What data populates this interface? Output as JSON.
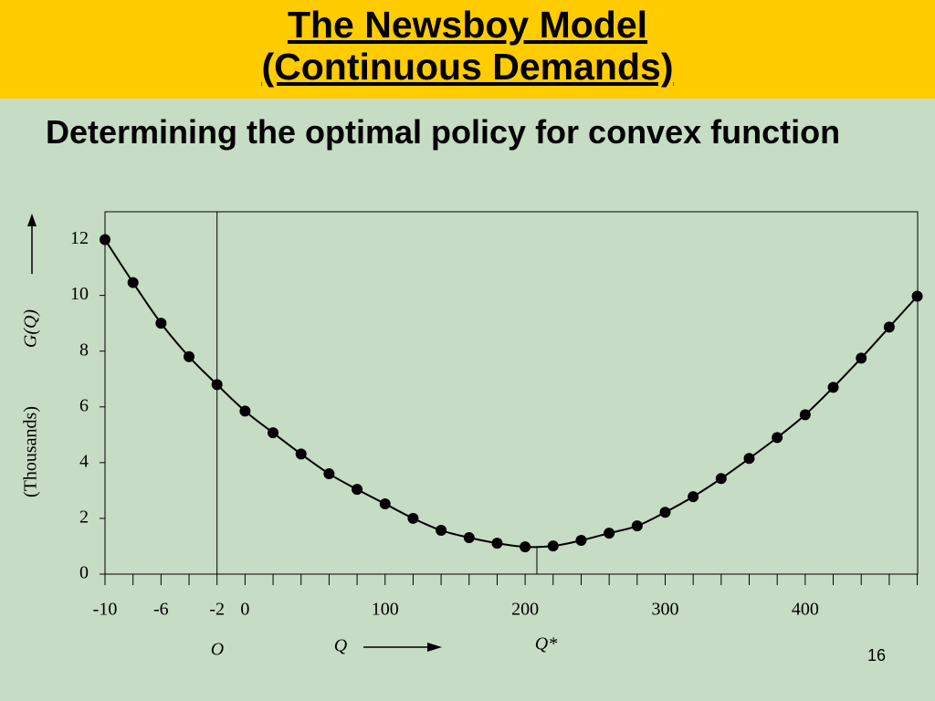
{
  "slide": {
    "title_lines": [
      "The Newsboy Model",
      "(Continuous Demands)"
    ],
    "heading": "Determining the optimal policy for convex function",
    "page_number": 16
  },
  "chart_data": {
    "type": "line",
    "markers": true,
    "color": "#000000",
    "y_label": "G(Q)",
    "y_unit_label": "(Thousands)",
    "x_label": "Q",
    "annotations": [
      "O",
      "Q*"
    ],
    "categories": [
      "-10",
      null,
      "-6",
      null,
      "-2",
      "0",
      null,
      null,
      null,
      null,
      "100",
      null,
      null,
      null,
      null,
      "200",
      null,
      null,
      null,
      null,
      "300",
      null,
      null,
      null,
      null,
      "400",
      null,
      null,
      null,
      null
    ],
    "values": [
      12,
      10.46,
      9.0,
      7.8,
      6.8,
      5.85,
      5.07,
      4.31,
      3.6,
      3.04,
      2.52,
      2.0,
      1.57,
      1.31,
      1.11,
      0.98,
      1.01,
      1.21,
      1.47,
      1.73,
      2.22,
      2.78,
      3.43,
      4.15,
      4.9,
      5.72,
      6.7,
      7.75,
      8.86,
      9.97
    ],
    "ylim": [
      0,
      13
    ],
    "yticks": [
      0,
      2,
      4,
      6,
      8,
      10,
      12
    ]
  }
}
